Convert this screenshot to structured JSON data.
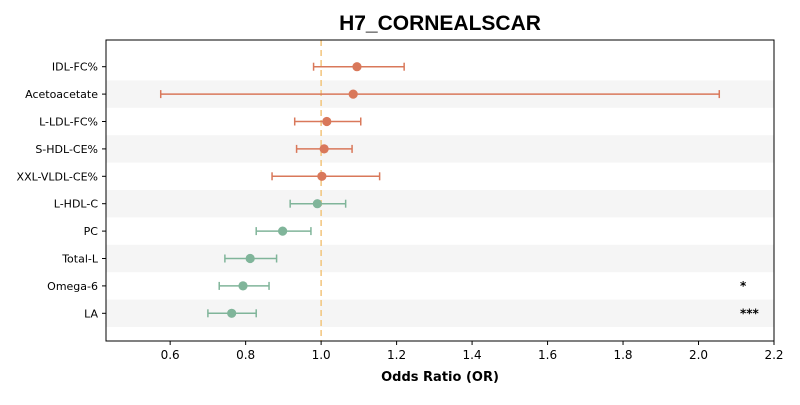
{
  "chart_data": {
    "type": "forest",
    "title": "H7_CORNEALSCAR",
    "xlabel": "Odds Ratio (OR)",
    "xlim": [
      0.43,
      2.2
    ],
    "xticks": [
      "0.6",
      "0.8",
      "1.0",
      "1.2",
      "1.4",
      "1.6",
      "1.8",
      "2.0",
      "2.2"
    ],
    "xtick_values": [
      0.6,
      0.8,
      1.0,
      1.2,
      1.4,
      1.6,
      1.8,
      2.0,
      2.2
    ],
    "reference_line": 1.0,
    "reference_color": "#f2c57c",
    "colors": {
      "risk": "#d9785a",
      "protective": "#80b59a",
      "band": "#f5f5f5",
      "frame": "#000000"
    },
    "rows": [
      {
        "label": "IDL-FC%",
        "or": 1.095,
        "lo": 0.98,
        "hi": 1.22,
        "group": "risk",
        "sig": ""
      },
      {
        "label": "Acetoacetate",
        "or": 1.085,
        "lo": 0.575,
        "hi": 2.055,
        "group": "risk",
        "sig": ""
      },
      {
        "label": "L-LDL-FC%",
        "or": 1.015,
        "lo": 0.93,
        "hi": 1.105,
        "group": "risk",
        "sig": ""
      },
      {
        "label": "S-HDL-CE%",
        "or": 1.008,
        "lo": 0.935,
        "hi": 1.082,
        "group": "risk",
        "sig": ""
      },
      {
        "label": "XXL-VLDL-CE%",
        "or": 1.002,
        "lo": 0.87,
        "hi": 1.155,
        "group": "risk",
        "sig": ""
      },
      {
        "label": "L-HDL-C",
        "or": 0.99,
        "lo": 0.918,
        "hi": 1.065,
        "group": "protective",
        "sig": ""
      },
      {
        "label": "PC",
        "or": 0.898,
        "lo": 0.828,
        "hi": 0.973,
        "group": "protective",
        "sig": ""
      },
      {
        "label": "Total-L",
        "or": 0.812,
        "lo": 0.745,
        "hi": 0.882,
        "group": "protective",
        "sig": ""
      },
      {
        "label": "Omega-6",
        "or": 0.793,
        "lo": 0.73,
        "hi": 0.862,
        "group": "protective",
        "sig": "*"
      },
      {
        "label": "LA",
        "or": 0.763,
        "lo": 0.7,
        "hi": 0.828,
        "group": "protective",
        "sig": "***"
      }
    ]
  }
}
